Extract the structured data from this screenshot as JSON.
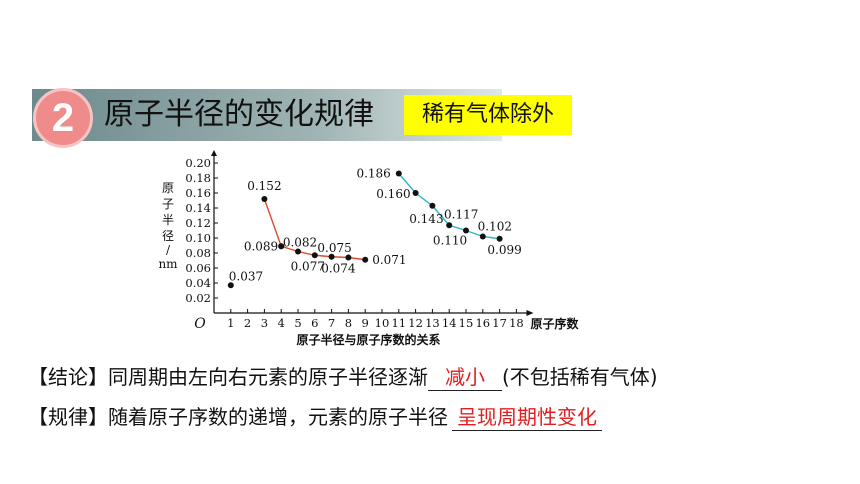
{
  "header": {
    "number": "2",
    "title": "原子半径的变化规律",
    "tag": "稀有气体除外"
  },
  "chart_data": {
    "type": "line",
    "xlabel": "原子序数",
    "ylabel": "原子半径/nm",
    "caption": "原子半径与原子序数的关系",
    "origin_label": "O",
    "xlim": [
      0,
      18
    ],
    "ylim": [
      0,
      0.2
    ],
    "x_ticks": [
      1,
      2,
      3,
      4,
      5,
      6,
      7,
      8,
      9,
      10,
      11,
      12,
      13,
      14,
      15,
      16,
      17,
      18
    ],
    "y_ticks": [
      "0.02",
      "0.04",
      "0.06",
      "0.08",
      "0.10",
      "0.12",
      "0.14",
      "0.16",
      "0.18",
      "0.20"
    ],
    "series": [
      {
        "points": [
          [
            1,
            0.037
          ]
        ],
        "labels": [
          "0.037"
        ],
        "line_color": null
      },
      {
        "points": [
          [
            3,
            0.152
          ],
          [
            4,
            0.089
          ]
        ],
        "labels": [
          "0.152",
          "0.089"
        ],
        "line_color": "#e04a2a"
      },
      {
        "points": [
          [
            4,
            0.089
          ],
          [
            5,
            0.082
          ],
          [
            6,
            0.077
          ],
          [
            7,
            0.075
          ],
          [
            8,
            0.074
          ],
          [
            9,
            0.071
          ]
        ],
        "labels": [
          "",
          "0.082",
          "0.077",
          "0.075",
          "0.074",
          "0.071"
        ],
        "line_color": "#e04a2a"
      },
      {
        "points": [
          [
            11,
            0.186
          ],
          [
            12,
            0.16
          ],
          [
            13,
            0.143
          ],
          [
            14,
            0.117
          ],
          [
            15,
            0.11
          ],
          [
            16,
            0.102
          ],
          [
            17,
            0.099
          ]
        ],
        "labels": [
          "0.186",
          "0.160",
          "0.143",
          "0.117",
          "0.110",
          "0.102",
          "0.099"
        ],
        "line_color": "#2bb5c8"
      }
    ]
  },
  "conclusion": {
    "prefix": "【结论】同周期由左向右元素的原子半径逐渐",
    "answer": "减小",
    "suffix": "(不包括稀有气体)"
  },
  "rule": {
    "prefix": "【规律】随着原子序数的递增，元素的原子半径",
    "answer": "呈现周期性变化"
  }
}
